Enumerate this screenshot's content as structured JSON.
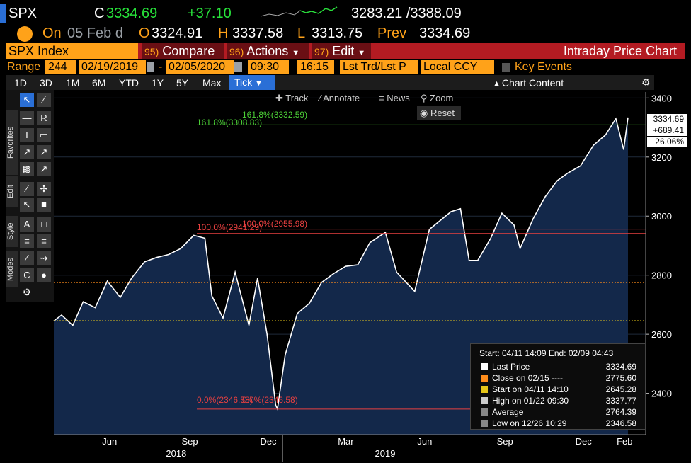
{
  "quote": {
    "ticker": "SPX",
    "flag": "C",
    "last": "3334.69",
    "change": "+37.10",
    "range": "3283.21 /3388.09",
    "on_label": "On",
    "on_date": "05 Feb d",
    "open_label": "O",
    "open": "3324.91",
    "high_label": "H",
    "high": "3337.58",
    "low_label": "L",
    "low": "3313.75",
    "prev_label": "Prev",
    "prev": "3334.69"
  },
  "function_bar": {
    "index_label": "SPX Index",
    "compare_num": "95)",
    "compare_label": "Compare",
    "actions_num": "96)",
    "actions_label": "Actions",
    "edit_num": "97)",
    "edit_label": "Edit",
    "title": "Intraday Price Chart"
  },
  "range_bar": {
    "range_label": "Range",
    "days": "244",
    "start_date": "02/19/2019",
    "dash": "-",
    "end_date": "02/05/2020",
    "start_time": "09:30",
    "end_time": "16:15",
    "price_type": "Lst Trd/Lst P",
    "currency": "Local CCY",
    "key_events": "Key Events"
  },
  "period_bar": {
    "periods": [
      "1D",
      "3D",
      "1M",
      "6M",
      "YTD",
      "1Y",
      "5Y",
      "Max"
    ],
    "tick_label": "Tick",
    "chart_content": "Chart Content"
  },
  "chart_tools": {
    "track": "Track",
    "annotate": "Annotate",
    "news": "News",
    "zoom": "Zoom",
    "reset": "Reset"
  },
  "side_tabs": [
    "Favorites",
    "Edit",
    "Style",
    "Modes"
  ],
  "price_labels": {
    "last": "3334.69",
    "change": "+689.41",
    "pct": "26.06%"
  },
  "fib_labels": {
    "f161_a": "161.8%(3332.59)",
    "f161_b": "161.8%(3308.83)",
    "f100_a": "100.0%(2941.29)",
    "f100_b": "100.0%(2955.98)",
    "f0_a": "0.0%(2346.58)",
    "f0_b": "0.0%(2346.58)"
  },
  "legend": {
    "header": "Start: 04/11 14:09 End: 02/09 04:43",
    "rows": [
      {
        "name": "Last Price",
        "value": "3334.69",
        "color": "#ffffff"
      },
      {
        "name": "Close on 02/15 ----",
        "value": "2775.60",
        "color": "#ff8c1a"
      },
      {
        "name": "Start on 04/11 14:10",
        "value": "2645.28",
        "color": "#e6c619"
      },
      {
        "name": "High on 01/22 09:30",
        "value": "3337.77",
        "color": "#cccccc"
      },
      {
        "name": "Average",
        "value": "2764.39",
        "color": "#888888"
      },
      {
        "name": "Low on 12/26 10:29",
        "value": "2346.58",
        "color": "#888888"
      }
    ]
  },
  "chart_data": {
    "type": "area",
    "ylim": [
      2260,
      3420
    ],
    "y_ticks": [
      2400,
      2600,
      2800,
      3000,
      3200,
      3400
    ],
    "x_month_labels": [
      "Jun",
      "Sep",
      "Dec",
      "Mar",
      "Jun",
      "Sep",
      "Dec",
      "Feb"
    ],
    "x_year_labels": [
      "2018",
      "2019"
    ],
    "series": [
      {
        "name": "Last Price",
        "color": "#ffffff",
        "fill": "#13284a",
        "x": [
          "2018-04-11",
          "2018-04-20",
          "2018-05-03",
          "2018-05-15",
          "2018-05-29",
          "2018-06-12",
          "2018-06-27",
          "2018-07-10",
          "2018-07-25",
          "2018-08-08",
          "2018-08-22",
          "2018-09-05",
          "2018-09-20",
          "2018-10-03",
          "2018-10-11",
          "2018-10-24",
          "2018-11-07",
          "2018-11-23",
          "2018-12-03",
          "2018-12-14",
          "2018-12-24",
          "2018-12-26",
          "2019-01-04",
          "2019-01-18",
          "2019-02-01",
          "2019-02-15",
          "2019-03-01",
          "2019-03-15",
          "2019-03-29",
          "2019-04-12",
          "2019-04-30",
          "2019-05-13",
          "2019-06-03",
          "2019-06-20",
          "2019-07-15",
          "2019-07-26",
          "2019-08-05",
          "2019-08-15",
          "2019-08-30",
          "2019-09-12",
          "2019-09-26",
          "2019-10-03",
          "2019-10-18",
          "2019-11-01",
          "2019-11-15",
          "2019-11-27",
          "2019-12-12",
          "2019-12-27",
          "2020-01-10",
          "2020-01-22",
          "2020-01-31",
          "2020-02-05"
        ],
        "values": [
          2645,
          2665,
          2630,
          2710,
          2690,
          2780,
          2725,
          2790,
          2845,
          2860,
          2870,
          2890,
          2935,
          2925,
          2730,
          2655,
          2810,
          2630,
          2790,
          2600,
          2360,
          2347,
          2530,
          2670,
          2705,
          2775,
          2805,
          2830,
          2835,
          2910,
          2945,
          2810,
          2745,
          2955,
          3015,
          3025,
          2850,
          2850,
          2925,
          3010,
          2970,
          2890,
          2990,
          3065,
          3120,
          3145,
          3170,
          3240,
          3275,
          3330,
          3225,
          3334
        ]
      }
    ],
    "reference_lines": [
      {
        "value": 3332.59,
        "color": "#4cd137"
      },
      {
        "value": 3308.83,
        "color": "#4cd137"
      },
      {
        "value": 2955.98,
        "color": "#e84040"
      },
      {
        "value": 2941.29,
        "color": "#e84040"
      },
      {
        "value": 2775.6,
        "color": "#ff8c1a"
      },
      {
        "value": 2645.28,
        "color": "#e6c619"
      },
      {
        "value": 2346.58,
        "color": "#e84040"
      }
    ]
  }
}
